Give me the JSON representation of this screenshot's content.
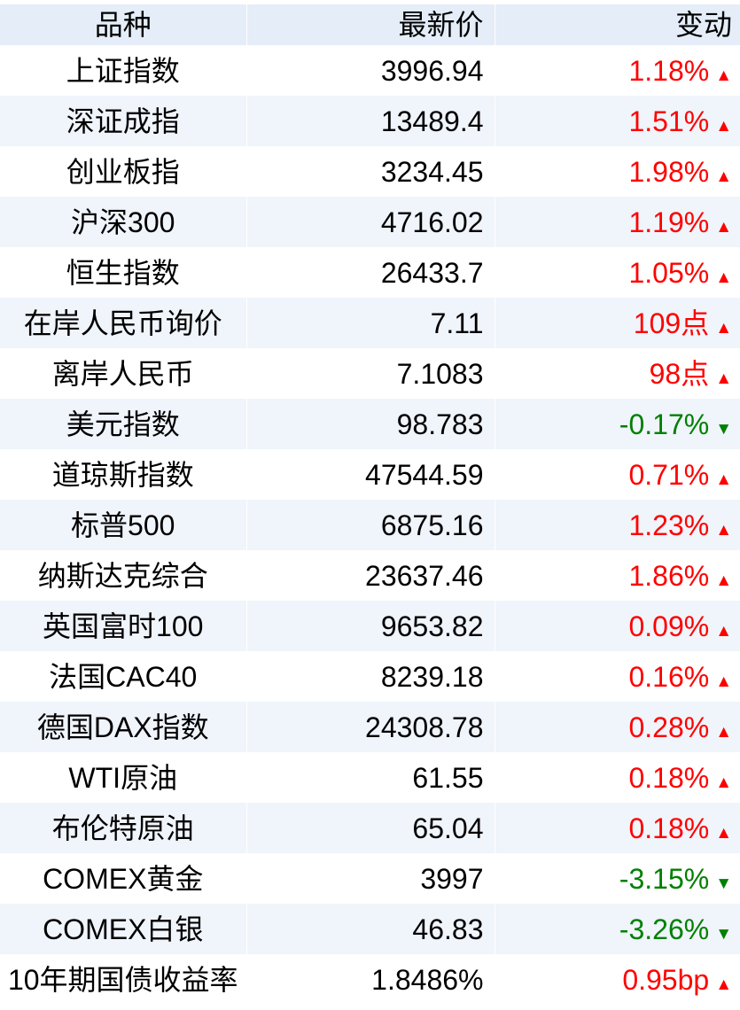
{
  "chart_data": {
    "type": "table",
    "columns": [
      "品种",
      "最新价",
      "变动"
    ],
    "rows": [
      {
        "name": "上证指数",
        "price": "3996.94",
        "change": "1.18%",
        "trend": "up",
        "arrow": "▲"
      },
      {
        "name": "深证成指",
        "price": "13489.4",
        "change": "1.51%",
        "trend": "up",
        "arrow": "▲"
      },
      {
        "name": "创业板指",
        "price": "3234.45",
        "change": "1.98%",
        "trend": "up",
        "arrow": "▲"
      },
      {
        "name": "沪深300",
        "price": "4716.02",
        "change": "1.19%",
        "trend": "up",
        "arrow": "▲"
      },
      {
        "name": "恒生指数",
        "price": "26433.7",
        "change": "1.05%",
        "trend": "up",
        "arrow": "▲"
      },
      {
        "name": "在岸人民币询价",
        "price": "7.11",
        "change": "109点",
        "trend": "up",
        "arrow": "▲"
      },
      {
        "name": "离岸人民币",
        "price": "7.1083",
        "change": "98点",
        "trend": "up",
        "arrow": "▲"
      },
      {
        "name": "美元指数",
        "price": "98.783",
        "change": "-0.17%",
        "trend": "down",
        "arrow": "▼"
      },
      {
        "name": "道琼斯指数",
        "price": "47544.59",
        "change": "0.71%",
        "trend": "up",
        "arrow": "▲"
      },
      {
        "name": "标普500",
        "price": "6875.16",
        "change": "1.23%",
        "trend": "up",
        "arrow": "▲"
      },
      {
        "name": "纳斯达克综合",
        "price": "23637.46",
        "change": "1.86%",
        "trend": "up",
        "arrow": "▲"
      },
      {
        "name": "英国富时100",
        "price": "9653.82",
        "change": "0.09%",
        "trend": "up",
        "arrow": "▲"
      },
      {
        "name": "法国CAC40",
        "price": "8239.18",
        "change": "0.16%",
        "trend": "up",
        "arrow": "▲"
      },
      {
        "name": "德国DAX指数",
        "price": "24308.78",
        "change": "0.28%",
        "trend": "up",
        "arrow": "▲"
      },
      {
        "name": "WTI原油",
        "price": "61.55",
        "change": "0.18%",
        "trend": "up",
        "arrow": "▲"
      },
      {
        "name": "布伦特原油",
        "price": "65.04",
        "change": "0.18%",
        "trend": "up",
        "arrow": "▲"
      },
      {
        "name": "COMEX黄金",
        "price": "3997",
        "change": "-3.15%",
        "trend": "down",
        "arrow": "▼"
      },
      {
        "name": "COMEX白银",
        "price": "46.83",
        "change": "-3.26%",
        "trend": "down",
        "arrow": "▼"
      },
      {
        "name": "10年期国债收益率",
        "price": "1.8486%",
        "change": "0.95bp",
        "trend": "up",
        "arrow": "▲"
      }
    ],
    "colors": {
      "up": "#ff0000",
      "down": "#008000",
      "header_bg": "#e4edf8",
      "stripe_bg": "#f0f4fb",
      "text": "#000000"
    }
  }
}
